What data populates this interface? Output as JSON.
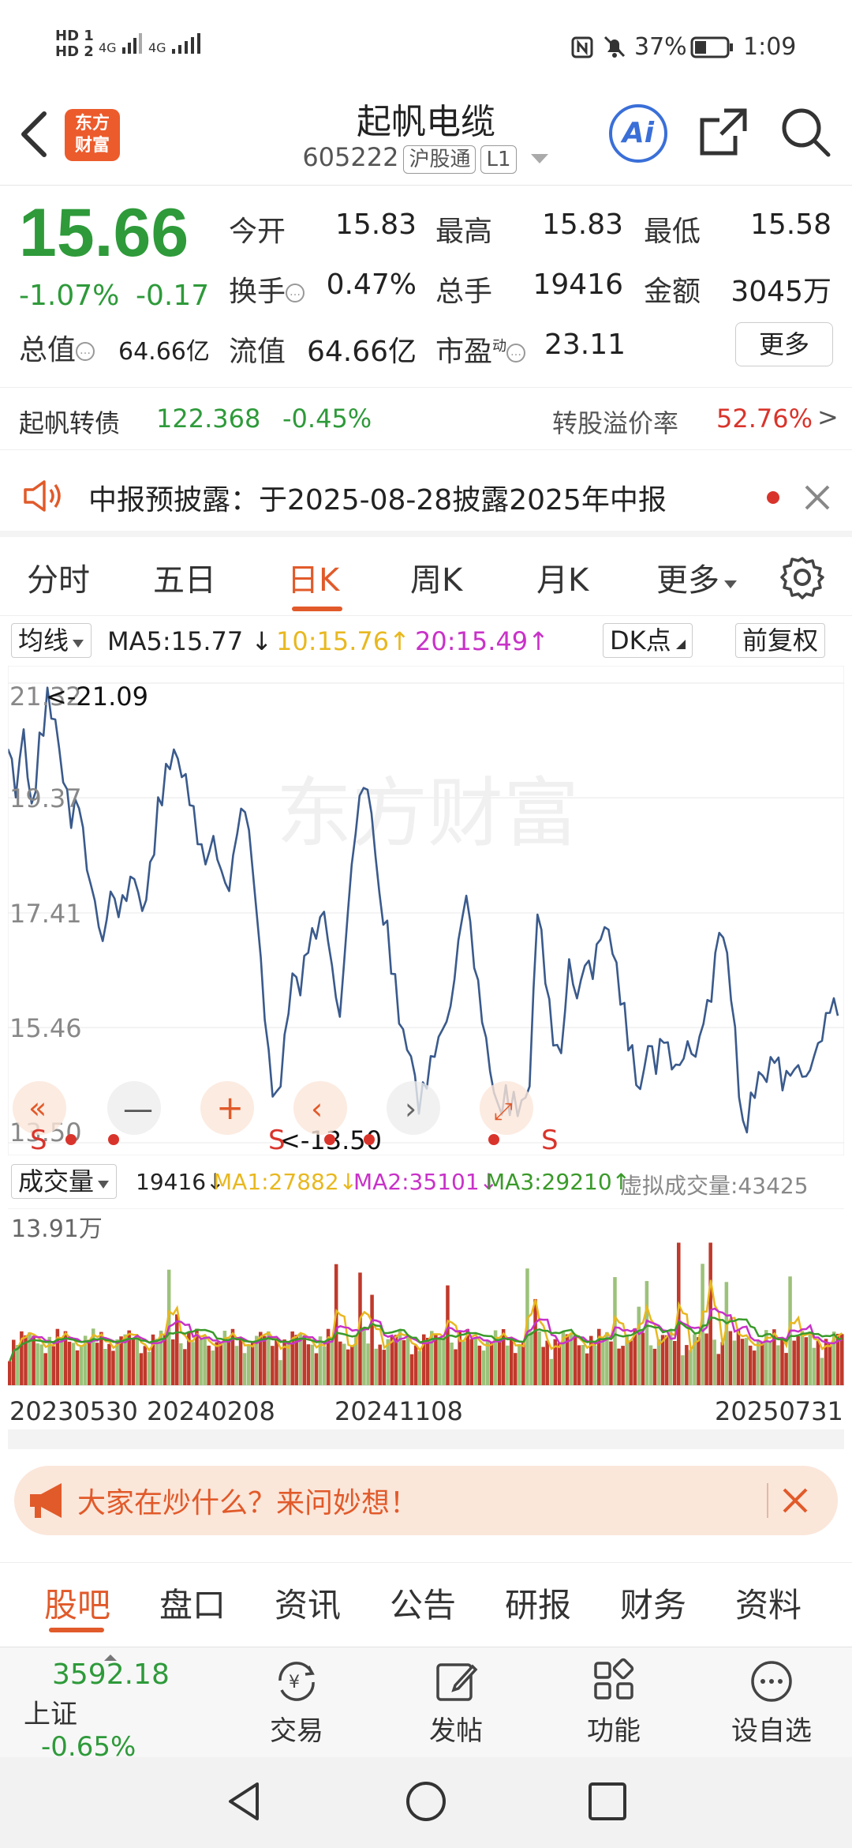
{
  "status_bar": {
    "hd1": "HD 1",
    "hd2": "HD 2",
    "net1": "4G",
    "net2": "4G",
    "battery": "37%",
    "time": "1:09"
  },
  "header": {
    "logo_line1": "东方",
    "logo_line2": "财富",
    "stock_name": "起帆电缆",
    "stock_code": "605222",
    "tag_connect": "沪股通",
    "tag_level": "L1",
    "ai_label": "Ai"
  },
  "quote": {
    "price": "15.66",
    "change_pct": "-1.07%",
    "change_amt": "-0.17",
    "open_label": "今开",
    "open": "15.83",
    "high_label": "最高",
    "high": "15.83",
    "low_label": "最低",
    "low": "15.58",
    "turnover_label": "换手",
    "turnover": "0.47%",
    "volume_label": "总手",
    "volume": "19416",
    "amount_label": "金额",
    "amount": "3045万",
    "mcap_label": "总值",
    "mcap": "64.66亿",
    "float_label": "流值",
    "float_mcap": "64.66亿",
    "pe_label": "市盈",
    "pe_sup": "动",
    "pe": "23.11",
    "more_button": "更多"
  },
  "bond": {
    "name": "起帆转债",
    "price": "122.368",
    "change": "-0.45%",
    "premium_label": "转股溢价率",
    "premium": "52.76%",
    "arrow": ">"
  },
  "notice": {
    "text": "中报预披露：于2025-08-28披露2025年中报"
  },
  "period_tabs": [
    "分时",
    "五日",
    "日K",
    "周K",
    "月K",
    "更多"
  ],
  "ma_row": {
    "selector": "均线",
    "ma5": "MA5:15.77",
    "ma10": "10:15.76",
    "ma20": "20:15.49",
    "dk_button": "DK点",
    "adjust_button": "前复权"
  },
  "price_axis": {
    "labels": [
      "21.32",
      "19.37",
      "17.41",
      "15.46",
      "13.50"
    ],
    "max_marker": "<-21.09",
    "min_marker": "<-13.50"
  },
  "volume_row": {
    "selector": "成交量",
    "vol": "19416",
    "ma1": "MA1:27882",
    "ma2": "MA2:35101",
    "ma3": "MA3:29210",
    "virtual": "虚拟成交量:43425",
    "axis_max": "13.91万"
  },
  "date_axis": [
    "20230530",
    "20240208",
    "20241108",
    "20250731"
  ],
  "ask_bar": {
    "text": "大家在炒什么？来问妙想！"
  },
  "content_tabs": [
    "股吧",
    "盘口",
    "资讯",
    "公告",
    "研报",
    "财务",
    "资料"
  ],
  "toolbar": {
    "index_value": "3592.18",
    "index_name": "上证",
    "index_change": "-0.65%",
    "trade": "交易",
    "post": "发帖",
    "functions": "功能",
    "watchlist": "设自选"
  },
  "colors": {
    "down_green": "#2e9a3a",
    "up_red": "#d9342b",
    "accent_orange": "#e15a2a",
    "price_line": "#3a5a8c",
    "ma1": "#e8b820",
    "ma2": "#c832c8",
    "ma3": "#3a9a2a"
  },
  "chart_data": {
    "type": "line",
    "title": "",
    "x_start": "20230530",
    "x_end": "20250731",
    "ylim": [
      13.5,
      21.32
    ],
    "values": [
      20.2,
      19.3,
      20.4,
      19.1,
      20.3,
      21.09,
      20.6,
      19.6,
      18.9,
      19.3,
      18.3,
      17.8,
      17.1,
      17.9,
      17.4,
      17.6,
      17.9,
      17.3,
      18.1,
      19.2,
      19.8,
      20.1,
      19.7,
      19.3,
      18.7,
      18.4,
      18.9,
      18.3,
      17.9,
      18.8,
      19.1,
      18.0,
      16.5,
      14.9,
      14.2,
      15.2,
      16.3,
      16.0,
      16.8,
      17.1,
      17.6,
      16.7,
      15.8,
      17.5,
      18.8,
      19.5,
      19.0,
      17.6,
      17.1,
      16.2,
      15.3,
      14.9,
      14.0,
      14.5,
      15.1,
      15.6,
      16.0,
      17.1,
      17.8,
      16.5,
      15.5,
      14.6,
      14.0,
      14.3,
      14.2,
      14.1,
      14.4,
      17.4,
      16.3,
      15.3,
      15.2,
      16.8,
      16.1,
      16.6,
      16.3,
      16.9,
      17.0,
      16.4,
      15.7,
      15.0,
      14.3,
      15.1,
      14.7,
      15.3,
      14.9,
      15.0,
      15.4,
      15.1,
      15.6,
      15.9,
      17.0,
      16.6,
      15.3,
      13.7,
      14.2,
      14.6,
      14.5,
      14.9,
      14.5,
      14.8,
      15.0,
      14.8,
      15.1,
      15.3,
      15.7,
      15.66
    ]
  }
}
